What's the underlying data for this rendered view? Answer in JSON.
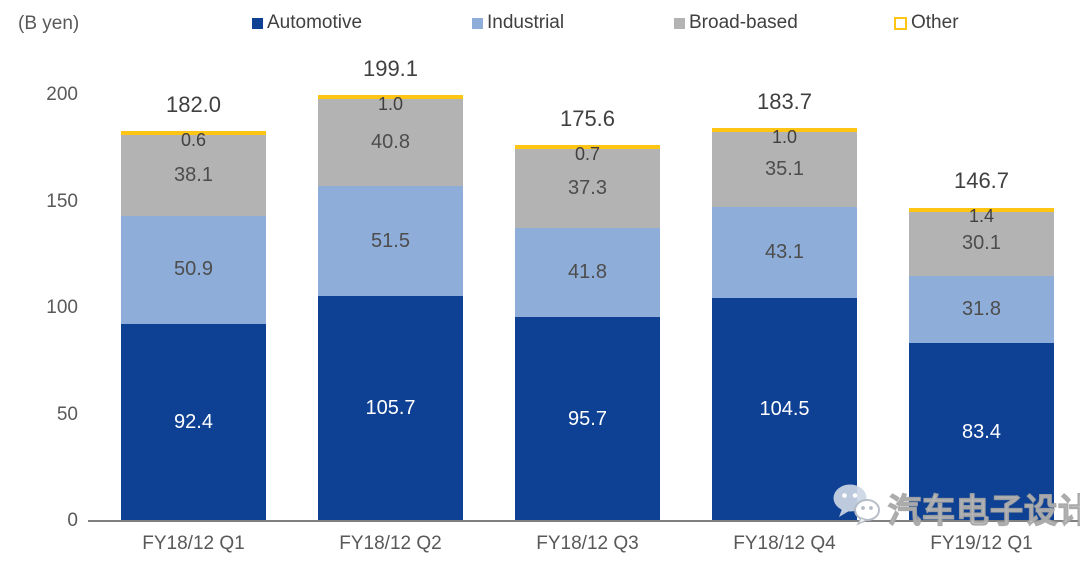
{
  "header": {
    "unit_label": "(B yen)"
  },
  "chart_data": {
    "type": "bar",
    "stacked": true,
    "title": "",
    "unit_label": "(B yen)",
    "categories": [
      "FY18/12 Q1",
      "FY18/12 Q2",
      "FY18/12 Q3",
      "FY18/12 Q4",
      "FY19/12 Q1"
    ],
    "series": [
      {
        "name": "Automotive",
        "color": "#0e4194",
        "values": [
          92.4,
          105.7,
          95.7,
          104.5,
          83.4
        ]
      },
      {
        "name": "Industrial",
        "color": "#8eadd8",
        "values": [
          50.9,
          51.5,
          41.8,
          43.1,
          31.8
        ]
      },
      {
        "name": "Broad-based",
        "color": "#b3b3b3",
        "values": [
          38.1,
          40.8,
          37.3,
          35.1,
          30.1
        ]
      },
      {
        "name": "Other",
        "color": "#ffc515",
        "values": [
          0.6,
          1.0,
          0.7,
          1.0,
          1.4
        ]
      }
    ],
    "totals": [
      "182.0",
      "199.1",
      "175.6",
      "183.7",
      "146.7"
    ],
    "yticks": [
      0,
      50,
      100,
      150,
      200
    ],
    "ylim": [
      0,
      200
    ],
    "grid": false,
    "legend_position": "top",
    "axis_color": "#7f7f7f",
    "label_color_dark": "#404040",
    "label_color_light": "#ffffff"
  },
  "watermark": {
    "text": "汽车电子设计",
    "icon": "wechat-icon"
  }
}
